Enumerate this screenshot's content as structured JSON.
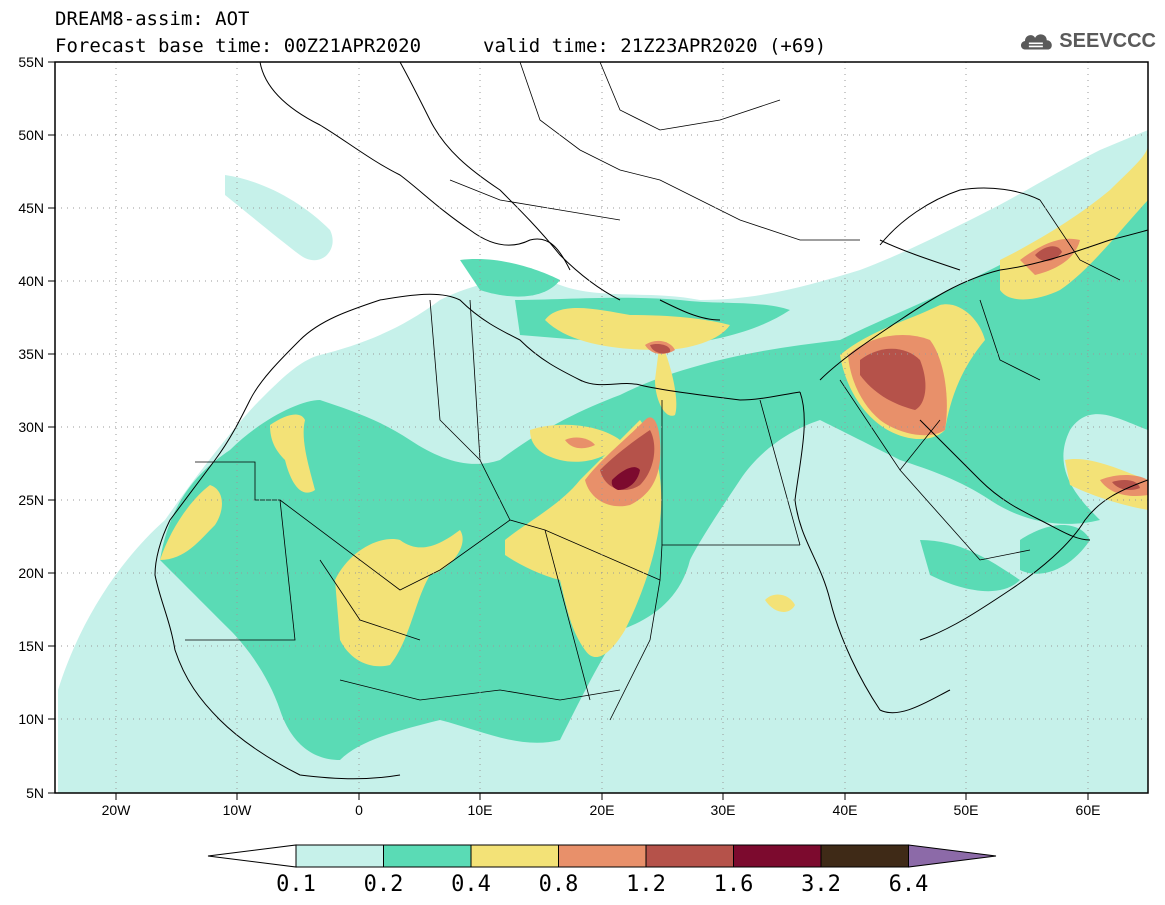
{
  "header": {
    "model_line": "DREAM8-assim: AOT",
    "base_time_line": "Forecast base time: 00Z21APR2020",
    "valid_time_line": "valid time: 21Z23APR2020 (+69)",
    "logo_text": "SEEVCCC",
    "logo_icon": "cloud-icon"
  },
  "map": {
    "region": {
      "lon_min": -25,
      "lon_max": 65,
      "lat_min": 5,
      "lat_max": 55
    },
    "lat_ticks": [
      "5N",
      "10N",
      "15N",
      "20N",
      "25N",
      "30N",
      "35N",
      "40N",
      "45N",
      "50N",
      "55N"
    ],
    "lon_ticks": [
      "20W",
      "10W",
      "0",
      "10E",
      "20E",
      "30E",
      "40E",
      "50E",
      "60E"
    ],
    "grid": "dotted"
  },
  "colorbar": {
    "labels": [
      "0.1",
      "0.2",
      "0.4",
      "0.8",
      "1.2",
      "1.6",
      "3.2",
      "6.4"
    ],
    "colors": [
      "#ffffff",
      "#c6f1ea",
      "#5adbb5",
      "#f3e277",
      "#e8906a",
      "#b5524a",
      "#7c0a2e",
      "#3f2a17",
      "#8c6aa8"
    ]
  }
}
